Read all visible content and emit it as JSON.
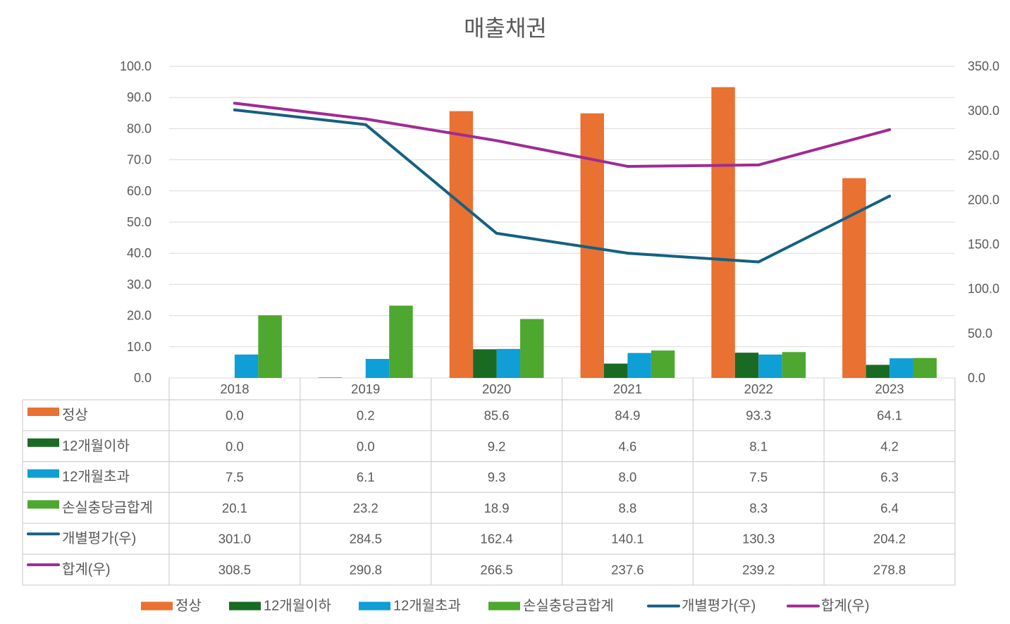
{
  "chart_data": {
    "type": "bar",
    "title": "매출채권",
    "categories": [
      "2018",
      "2019",
      "2020",
      "2021",
      "2022",
      "2023"
    ],
    "ylim": [
      0,
      100
    ],
    "y2lim": [
      0,
      350
    ],
    "yticks": [
      "0.0",
      "10.0",
      "20.0",
      "30.0",
      "40.0",
      "50.0",
      "60.0",
      "70.0",
      "80.0",
      "90.0",
      "100.0"
    ],
    "y2ticks": [
      "0.0",
      "50.0",
      "100.0",
      "150.0",
      "200.0",
      "250.0",
      "300.0",
      "350.0"
    ],
    "grid": true,
    "legend": "bottom",
    "series": [
      {
        "name": "정상",
        "color": "#E97132",
        "values": [
          0.0,
          0.2,
          85.6,
          84.9,
          93.3,
          64.1
        ],
        "table_values": [
          "0.0",
          "0.2",
          "85.6",
          "84.9",
          "93.3",
          "64.1"
        ]
      },
      {
        "name": "12개월이하",
        "color": "#196B24",
        "values": [
          0.0,
          0.0,
          9.2,
          4.6,
          8.1,
          4.2
        ],
        "table_values": [
          "0.0",
          "0.0",
          "9.2",
          "4.6",
          "8.1",
          "4.2"
        ]
      },
      {
        "name": "12개월초과",
        "color": "#0F9ED5",
        "values": [
          7.5,
          6.1,
          9.3,
          8.0,
          7.5,
          6.3
        ],
        "table_values": [
          "7.5",
          "6.1",
          "9.3",
          "8.0",
          "7.5",
          "6.3"
        ]
      },
      {
        "name": "손실충당금합계",
        "color": "#4EA72E",
        "values": [
          20.1,
          23.2,
          18.9,
          8.8,
          8.3,
          6.4
        ],
        "table_values": [
          "20.1",
          "23.2",
          "18.9",
          "8.8",
          "8.3",
          "6.4"
        ]
      }
    ],
    "secondary_series": [
      {
        "name": "개별평가(우)",
        "color": "#156082",
        "values": [
          301.0,
          284.5,
          162.4,
          140.1,
          130.3,
          204.2
        ],
        "table_values": [
          "301.0",
          "284.5",
          "162.4",
          "140.1",
          "130.3",
          "204.2"
        ]
      },
      {
        "name": "합계(우)",
        "color": "#A02B93",
        "values": [
          308.5,
          290.8,
          266.5,
          237.6,
          239.2,
          278.8
        ],
        "table_values": [
          "308.5",
          "290.8",
          "266.5",
          "237.6",
          "239.2",
          "278.8"
        ]
      }
    ]
  }
}
